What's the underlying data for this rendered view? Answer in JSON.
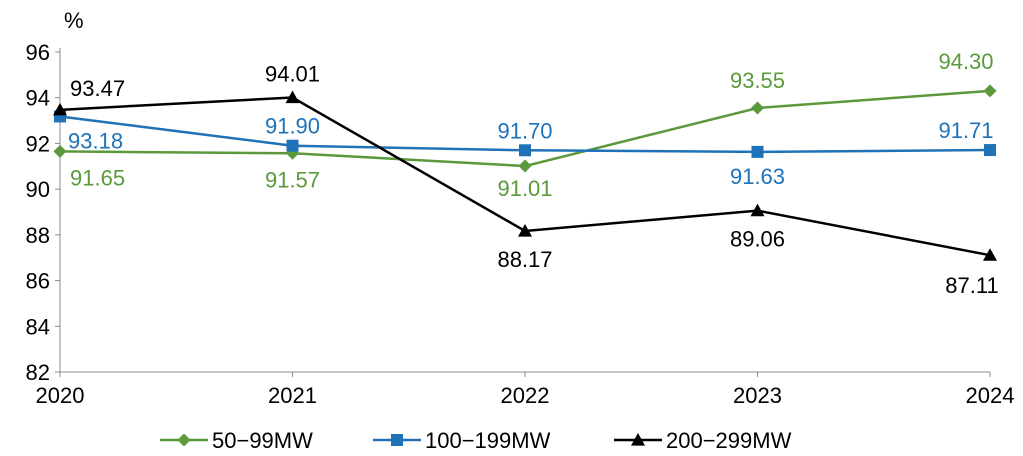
{
  "chart_data": {
    "type": "line",
    "categories": [
      "2020",
      "2021",
      "2022",
      "2023",
      "2024"
    ],
    "y_unit": "%",
    "ylim": [
      82,
      96
    ],
    "y_ticks": [
      82,
      84,
      86,
      88,
      90,
      92,
      94,
      96
    ],
    "grid": false,
    "legend_position": "bottom",
    "series": [
      {
        "name": "50−99MW",
        "color": "#5b9a3c",
        "marker": "diamond",
        "values": [
          91.65,
          91.57,
          91.01,
          93.55,
          94.3
        ],
        "labels": [
          "91.65",
          "91.57",
          "91.01",
          "93.55",
          "94.30"
        ]
      },
      {
        "name": "100−199MW",
        "color": "#1f72b8",
        "marker": "square",
        "values": [
          93.18,
          91.9,
          91.7,
          91.63,
          91.71
        ],
        "labels": [
          "93.18",
          "91.90",
          "91.70",
          "91.63",
          "91.71"
        ]
      },
      {
        "name": "200−299MW",
        "color": "#000000",
        "marker": "triangle",
        "values": [
          93.47,
          94.01,
          88.17,
          89.06,
          87.11
        ],
        "labels": [
          "93.47",
          "94.01",
          "88.17",
          "89.06",
          "87.11"
        ]
      }
    ]
  }
}
